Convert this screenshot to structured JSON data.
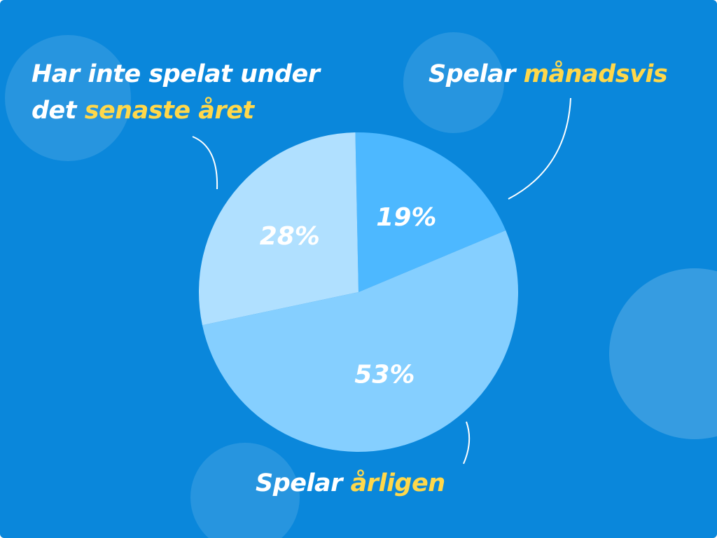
{
  "chart_data": {
    "type": "pie",
    "categories": [
      {
        "text": "Spelar",
        "highlight": "månadsvis"
      },
      {
        "text": "Spelar",
        "highlight": "årligen"
      },
      {
        "text": "Har inte spelat under det",
        "highlight": "senaste året"
      }
    ],
    "values": [
      19,
      53,
      28
    ],
    "value_labels": [
      "19%",
      "53%",
      "28%"
    ],
    "colors": [
      "#4db8ff",
      "#85cfff",
      "#b0e0ff"
    ],
    "highlight_color": "#ffd84a"
  }
}
